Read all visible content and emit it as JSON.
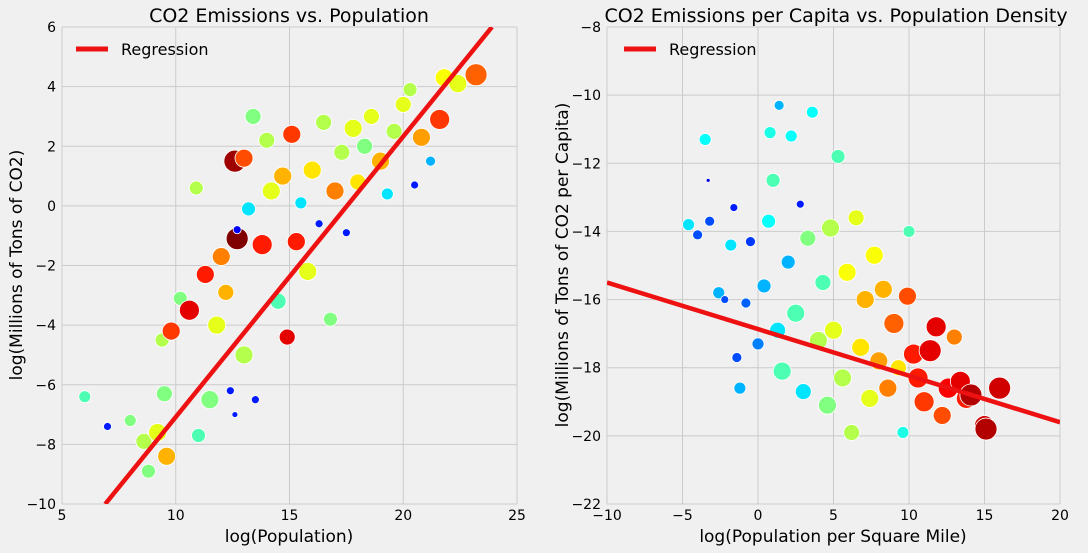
{
  "chart_data": [
    {
      "type": "scatter",
      "title": "CO2 Emissions vs. Population",
      "xlabel": "log(Population)",
      "ylabel": "log(Millions of Tons of CO2)",
      "xlim": [
        5,
        25
      ],
      "ylim": [
        -10,
        6
      ],
      "xticks": [
        "5",
        "10",
        "15",
        "20",
        "25"
      ],
      "yticks": [
        "6",
        "4",
        "2",
        "0",
        "−2",
        "−4",
        "−6",
        "−8",
        "−10"
      ],
      "grid": true,
      "legend": {
        "placement": "top-left",
        "entries": [
          "Regression"
        ]
      },
      "regression": {
        "name": "Regression",
        "color": "#ee1111",
        "points": [
          [
            6.9,
            -10
          ],
          [
            23.9,
            6
          ]
        ]
      },
      "colormap": "jet",
      "points": [
        {
          "x": 6.0,
          "y": -6.4,
          "c": 0.45,
          "s": 6
        },
        {
          "x": 7.0,
          "y": -7.4,
          "c": 0.15,
          "s": 4
        },
        {
          "x": 8.0,
          "y": -7.2,
          "c": 0.5,
          "s": 6
        },
        {
          "x": 8.6,
          "y": -7.9,
          "c": 0.55,
          "s": 8
        },
        {
          "x": 8.8,
          "y": -8.9,
          "c": 0.5,
          "s": 7
        },
        {
          "x": 9.2,
          "y": -7.6,
          "c": 0.6,
          "s": 9
        },
        {
          "x": 9.4,
          "y": -4.5,
          "c": 0.55,
          "s": 7
        },
        {
          "x": 9.5,
          "y": -6.3,
          "c": 0.5,
          "s": 8
        },
        {
          "x": 9.6,
          "y": -8.4,
          "c": 0.7,
          "s": 9
        },
        {
          "x": 9.8,
          "y": -4.2,
          "c": 0.82,
          "s": 9
        },
        {
          "x": 10.2,
          "y": -3.1,
          "c": 0.5,
          "s": 7
        },
        {
          "x": 10.6,
          "y": -3.5,
          "c": 0.9,
          "s": 10
        },
        {
          "x": 10.9,
          "y": 0.6,
          "c": 0.55,
          "s": 7
        },
        {
          "x": 11.0,
          "y": -7.7,
          "c": 0.45,
          "s": 7
        },
        {
          "x": 11.3,
          "y": -2.3,
          "c": 0.85,
          "s": 9
        },
        {
          "x": 11.5,
          "y": -6.5,
          "c": 0.5,
          "s": 9
        },
        {
          "x": 11.8,
          "y": -4.0,
          "c": 0.6,
          "s": 9
        },
        {
          "x": 12.0,
          "y": -1.7,
          "c": 0.75,
          "s": 9
        },
        {
          "x": 12.2,
          "y": -2.9,
          "c": 0.7,
          "s": 8
        },
        {
          "x": 12.4,
          "y": -6.2,
          "c": 0.15,
          "s": 4
        },
        {
          "x": 12.6,
          "y": -7.0,
          "c": 0.15,
          "s": 3
        },
        {
          "x": 12.6,
          "y": 1.5,
          "c": 0.97,
          "s": 11
        },
        {
          "x": 12.7,
          "y": -1.1,
          "c": 1.0,
          "s": 11
        },
        {
          "x": 12.7,
          "y": -0.8,
          "c": 0.12,
          "s": 4
        },
        {
          "x": 13.0,
          "y": 1.6,
          "c": 0.8,
          "s": 9
        },
        {
          "x": 13.0,
          "y": -5.0,
          "c": 0.55,
          "s": 9
        },
        {
          "x": 13.2,
          "y": -0.1,
          "c": 0.35,
          "s": 7
        },
        {
          "x": 13.4,
          "y": 3.0,
          "c": 0.5,
          "s": 8
        },
        {
          "x": 13.5,
          "y": -6.5,
          "c": 0.15,
          "s": 4
        },
        {
          "x": 13.8,
          "y": -1.3,
          "c": 0.85,
          "s": 10
        },
        {
          "x": 14.0,
          "y": 2.2,
          "c": 0.55,
          "s": 8
        },
        {
          "x": 14.2,
          "y": 0.5,
          "c": 0.6,
          "s": 9
        },
        {
          "x": 14.5,
          "y": -3.2,
          "c": 0.45,
          "s": 8
        },
        {
          "x": 14.7,
          "y": 1.0,
          "c": 0.7,
          "s": 9
        },
        {
          "x": 14.9,
          "y": -4.4,
          "c": 0.9,
          "s": 8
        },
        {
          "x": 15.1,
          "y": 2.4,
          "c": 0.82,
          "s": 9
        },
        {
          "x": 15.3,
          "y": -1.2,
          "c": 0.85,
          "s": 9
        },
        {
          "x": 15.5,
          "y": 0.1,
          "c": 0.35,
          "s": 6
        },
        {
          "x": 15.8,
          "y": -2.2,
          "c": 0.6,
          "s": 9
        },
        {
          "x": 16.0,
          "y": 1.2,
          "c": 0.65,
          "s": 9
        },
        {
          "x": 16.3,
          "y": -0.6,
          "c": 0.15,
          "s": 4
        },
        {
          "x": 16.5,
          "y": 2.8,
          "c": 0.55,
          "s": 8
        },
        {
          "x": 16.8,
          "y": -3.8,
          "c": 0.5,
          "s": 7
        },
        {
          "x": 17.0,
          "y": 0.5,
          "c": 0.75,
          "s": 9
        },
        {
          "x": 17.3,
          "y": 1.8,
          "c": 0.55,
          "s": 8
        },
        {
          "x": 17.5,
          "y": -0.9,
          "c": 0.15,
          "s": 4
        },
        {
          "x": 17.8,
          "y": 2.6,
          "c": 0.6,
          "s": 9
        },
        {
          "x": 18.0,
          "y": 0.8,
          "c": 0.65,
          "s": 8
        },
        {
          "x": 18.3,
          "y": 2.0,
          "c": 0.5,
          "s": 8
        },
        {
          "x": 18.6,
          "y": 3.0,
          "c": 0.6,
          "s": 8
        },
        {
          "x": 19.0,
          "y": 1.5,
          "c": 0.7,
          "s": 9
        },
        {
          "x": 19.3,
          "y": 0.4,
          "c": 0.35,
          "s": 6
        },
        {
          "x": 19.6,
          "y": 2.5,
          "c": 0.55,
          "s": 8
        },
        {
          "x": 20.0,
          "y": 3.4,
          "c": 0.6,
          "s": 8
        },
        {
          "x": 20.3,
          "y": 3.9,
          "c": 0.55,
          "s": 7
        },
        {
          "x": 20.5,
          "y": 0.7,
          "c": 0.15,
          "s": 4
        },
        {
          "x": 20.8,
          "y": 2.3,
          "c": 0.72,
          "s": 9
        },
        {
          "x": 21.2,
          "y": 1.5,
          "c": 0.3,
          "s": 5
        },
        {
          "x": 21.6,
          "y": 2.9,
          "c": 0.82,
          "s": 10
        },
        {
          "x": 21.8,
          "y": 4.3,
          "c": 0.62,
          "s": 9
        },
        {
          "x": 22.4,
          "y": 4.1,
          "c": 0.6,
          "s": 9
        },
        {
          "x": 23.2,
          "y": 4.4,
          "c": 0.78,
          "s": 11
        }
      ]
    },
    {
      "type": "scatter",
      "title": "CO2 Emissions per Capita vs. Population Density",
      "xlabel": "log(Population per Square Mile)",
      "ylabel": "log(Millions of Tons of CO2 per Capita)",
      "xlim": [
        -10,
        20
      ],
      "ylim": [
        -22,
        -8
      ],
      "xticks": [
        "−10",
        "−5",
        "0",
        "5",
        "10",
        "15",
        "20"
      ],
      "yticks": [
        "−8",
        "−10",
        "−12",
        "−14",
        "−16",
        "−18",
        "−20",
        "−22"
      ],
      "grid": true,
      "legend": {
        "placement": "top-left",
        "entries": [
          "Regression"
        ]
      },
      "regression": {
        "name": "Regression",
        "color": "#ee1111",
        "points": [
          [
            -10,
            -15.5
          ],
          [
            20,
            -19.6
          ]
        ]
      },
      "colormap": "jet",
      "points": [
        {
          "x": -4.6,
          "y": -13.8,
          "c": 0.35,
          "s": 6
        },
        {
          "x": -4.0,
          "y": -14.1,
          "c": 0.2,
          "s": 5
        },
        {
          "x": -3.5,
          "y": -11.3,
          "c": 0.38,
          "s": 6
        },
        {
          "x": -3.3,
          "y": -12.5,
          "c": 0.1,
          "s": 2
        },
        {
          "x": -3.2,
          "y": -13.7,
          "c": 0.2,
          "s": 5
        },
        {
          "x": -2.6,
          "y": -15.8,
          "c": 0.3,
          "s": 6
        },
        {
          "x": -2.2,
          "y": -16.0,
          "c": 0.2,
          "s": 4
        },
        {
          "x": -1.8,
          "y": -14.4,
          "c": 0.35,
          "s": 6
        },
        {
          "x": -1.6,
          "y": -13.3,
          "c": 0.15,
          "s": 4
        },
        {
          "x": -1.4,
          "y": -17.7,
          "c": 0.2,
          "s": 5
        },
        {
          "x": -1.2,
          "y": -18.6,
          "c": 0.3,
          "s": 6
        },
        {
          "x": -0.8,
          "y": -16.1,
          "c": 0.22,
          "s": 5
        },
        {
          "x": -0.5,
          "y": -14.3,
          "c": 0.18,
          "s": 5
        },
        {
          "x": 0.0,
          "y": -17.3,
          "c": 0.25,
          "s": 6
        },
        {
          "x": 0.4,
          "y": -15.6,
          "c": 0.3,
          "s": 7
        },
        {
          "x": 0.7,
          "y": -13.7,
          "c": 0.38,
          "s": 7
        },
        {
          "x": 0.8,
          "y": -11.1,
          "c": 0.4,
          "s": 6
        },
        {
          "x": 1.0,
          "y": -12.5,
          "c": 0.45,
          "s": 7
        },
        {
          "x": 1.3,
          "y": -16.9,
          "c": 0.35,
          "s": 8
        },
        {
          "x": 1.4,
          "y": -10.3,
          "c": 0.3,
          "s": 5
        },
        {
          "x": 1.6,
          "y": -18.1,
          "c": 0.45,
          "s": 9
        },
        {
          "x": 2.0,
          "y": -14.9,
          "c": 0.3,
          "s": 7
        },
        {
          "x": 2.2,
          "y": -11.2,
          "c": 0.38,
          "s": 6
        },
        {
          "x": 2.5,
          "y": -16.4,
          "c": 0.45,
          "s": 9
        },
        {
          "x": 2.8,
          "y": -13.2,
          "c": 0.15,
          "s": 4
        },
        {
          "x": 3.0,
          "y": -18.7,
          "c": 0.35,
          "s": 8
        },
        {
          "x": 3.3,
          "y": -14.2,
          "c": 0.5,
          "s": 8
        },
        {
          "x": 3.6,
          "y": -10.5,
          "c": 0.38,
          "s": 6
        },
        {
          "x": 4.0,
          "y": -17.2,
          "c": 0.55,
          "s": 9
        },
        {
          "x": 4.3,
          "y": -15.5,
          "c": 0.45,
          "s": 8
        },
        {
          "x": 4.6,
          "y": -19.1,
          "c": 0.5,
          "s": 9
        },
        {
          "x": 4.8,
          "y": -13.9,
          "c": 0.55,
          "s": 9
        },
        {
          "x": 5.0,
          "y": -16.9,
          "c": 0.6,
          "s": 9
        },
        {
          "x": 5.3,
          "y": -11.8,
          "c": 0.45,
          "s": 7
        },
        {
          "x": 5.6,
          "y": -18.3,
          "c": 0.55,
          "s": 9
        },
        {
          "x": 5.9,
          "y": -15.2,
          "c": 0.62,
          "s": 9
        },
        {
          "x": 6.2,
          "y": -19.9,
          "c": 0.55,
          "s": 8
        },
        {
          "x": 6.5,
          "y": -13.6,
          "c": 0.6,
          "s": 8
        },
        {
          "x": 6.8,
          "y": -17.4,
          "c": 0.65,
          "s": 9
        },
        {
          "x": 7.1,
          "y": -16.0,
          "c": 0.7,
          "s": 9
        },
        {
          "x": 7.4,
          "y": -18.9,
          "c": 0.6,
          "s": 9
        },
        {
          "x": 7.7,
          "y": -14.7,
          "c": 0.62,
          "s": 9
        },
        {
          "x": 8.0,
          "y": -17.8,
          "c": 0.72,
          "s": 9
        },
        {
          "x": 8.3,
          "y": -15.7,
          "c": 0.7,
          "s": 9
        },
        {
          "x": 8.6,
          "y": -18.6,
          "c": 0.75,
          "s": 9
        },
        {
          "x": 9.0,
          "y": -16.7,
          "c": 0.78,
          "s": 10
        },
        {
          "x": 9.3,
          "y": -18.0,
          "c": 0.65,
          "s": 8
        },
        {
          "x": 9.6,
          "y": -19.9,
          "c": 0.4,
          "s": 6
        },
        {
          "x": 9.9,
          "y": -15.9,
          "c": 0.8,
          "s": 9
        },
        {
          "x": 10.0,
          "y": -14.0,
          "c": 0.45,
          "s": 6
        },
        {
          "x": 10.3,
          "y": -17.6,
          "c": 0.85,
          "s": 10
        },
        {
          "x": 10.6,
          "y": -18.3,
          "c": 0.85,
          "s": 10
        },
        {
          "x": 11.0,
          "y": -19.0,
          "c": 0.82,
          "s": 10
        },
        {
          "x": 11.4,
          "y": -17.5,
          "c": 0.9,
          "s": 11
        },
        {
          "x": 11.8,
          "y": -16.8,
          "c": 0.9,
          "s": 10
        },
        {
          "x": 12.2,
          "y": -19.4,
          "c": 0.8,
          "s": 9
        },
        {
          "x": 12.6,
          "y": -18.6,
          "c": 0.88,
          "s": 10
        },
        {
          "x": 13.0,
          "y": -17.1,
          "c": 0.75,
          "s": 8
        },
        {
          "x": 13.4,
          "y": -18.4,
          "c": 0.9,
          "s": 10
        },
        {
          "x": 13.8,
          "y": -18.9,
          "c": 0.85,
          "s": 10
        },
        {
          "x": 14.1,
          "y": -18.8,
          "c": 0.95,
          "s": 11
        },
        {
          "x": 15.0,
          "y": -19.7,
          "c": 0.92,
          "s": 10
        },
        {
          "x": 15.1,
          "y": -19.8,
          "c": 0.95,
          "s": 11
        },
        {
          "x": 16.0,
          "y": -18.6,
          "c": 0.92,
          "s": 11
        }
      ]
    }
  ]
}
